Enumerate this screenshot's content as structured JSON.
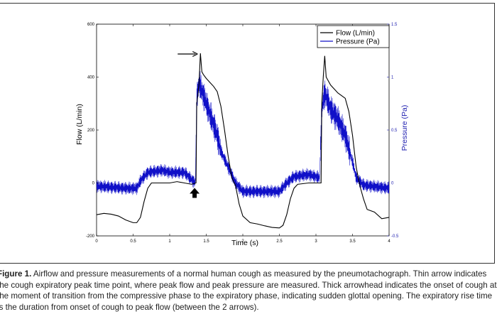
{
  "figure": {
    "caption_label": "Figure 1.",
    "caption_text": "Airflow and pressure measurements of a normal human cough as measured by the pneumotachograph. Thin arrow indicates the cough expiratory peak time point, where peak flow and peak pressure are measured. Thick arrowhead indicates the onset of cough at the moment of transition from the compressive phase to the expiratory phase, indicating sudden glottal opening. The expiratory rise time is the duration from onset of cough to peak flow (between the 2 arrows)."
  },
  "colors": {
    "flow": "#000000",
    "pressure": "#1010c8",
    "right_axis": "#2020b0"
  },
  "chart_data": {
    "type": "line",
    "title": "",
    "xlabel": "Time (s)",
    "ylabel": "Flow (L/min)",
    "y2label": "Pressure (Pa)",
    "xlim": [
      0,
      4
    ],
    "ylim": [
      -200,
      600
    ],
    "y2lim": [
      -0.5,
      1.5
    ],
    "x_ticks": [
      "0",
      "0.5",
      "1",
      "1.5",
      "2",
      "2.5",
      "3",
      "3.5",
      "4"
    ],
    "y_ticks": [
      "-200",
      "0",
      "200",
      "400",
      "600"
    ],
    "y2_ticks": [
      "-0.5",
      "0",
      "0.5",
      "1",
      "1.5"
    ],
    "legend_position": "top-right",
    "series": [
      {
        "name": "Flow (L/min)",
        "axis": "left",
        "points": [
          [
            0,
            -120
          ],
          [
            0.1,
            -115
          ],
          [
            0.2,
            -118
          ],
          [
            0.3,
            -125
          ],
          [
            0.4,
            -140
          ],
          [
            0.5,
            -150
          ],
          [
            0.55,
            -150
          ],
          [
            0.6,
            -130
          ],
          [
            0.65,
            -70
          ],
          [
            0.7,
            -20
          ],
          [
            0.75,
            0
          ],
          [
            0.9,
            0
          ],
          [
            1.0,
            0
          ],
          [
            1.1,
            5
          ],
          [
            1.2,
            0
          ],
          [
            1.3,
            -5
          ],
          [
            1.36,
            0
          ],
          [
            1.37,
            300
          ],
          [
            1.38,
            320
          ],
          [
            1.4,
            370
          ],
          [
            1.42,
            490
          ],
          [
            1.44,
            420
          ],
          [
            1.46,
            410
          ],
          [
            1.5,
            395
          ],
          [
            1.55,
            380
          ],
          [
            1.6,
            365
          ],
          [
            1.65,
            345
          ],
          [
            1.7,
            290
          ],
          [
            1.75,
            200
          ],
          [
            1.8,
            100
          ],
          [
            1.85,
            20
          ],
          [
            1.9,
            -10
          ],
          [
            1.95,
            -80
          ],
          [
            2.0,
            -125
          ],
          [
            2.1,
            -150
          ],
          [
            2.2,
            -155
          ],
          [
            2.3,
            -162
          ],
          [
            2.4,
            -168
          ],
          [
            2.5,
            -170
          ],
          [
            2.55,
            -160
          ],
          [
            2.6,
            -120
          ],
          [
            2.65,
            -60
          ],
          [
            2.7,
            -20
          ],
          [
            2.75,
            -5
          ],
          [
            2.9,
            0
          ],
          [
            3.0,
            0
          ],
          [
            3.05,
            0
          ],
          [
            3.07,
            0
          ],
          [
            3.08,
            300
          ],
          [
            3.1,
            400
          ],
          [
            3.12,
            480
          ],
          [
            3.14,
            400
          ],
          [
            3.2,
            370
          ],
          [
            3.3,
            340
          ],
          [
            3.4,
            320
          ],
          [
            3.45,
            270
          ],
          [
            3.5,
            180
          ],
          [
            3.55,
            60
          ],
          [
            3.6,
            -10
          ],
          [
            3.65,
            -60
          ],
          [
            3.7,
            -100
          ],
          [
            3.8,
            -110
          ],
          [
            3.9,
            -135
          ],
          [
            4.0,
            -130
          ]
        ]
      },
      {
        "name": "Pressure (Pa)",
        "axis": "right",
        "points": [
          [
            0,
            -0.03
          ],
          [
            0.4,
            -0.05
          ],
          [
            0.55,
            -0.05
          ],
          [
            0.6,
            0.02
          ],
          [
            0.7,
            0.1
          ],
          [
            0.9,
            0.12
          ],
          [
            1.0,
            0.1
          ],
          [
            1.2,
            0.1
          ],
          [
            1.35,
            0.0
          ],
          [
            1.37,
            0.8
          ],
          [
            1.4,
            0.95
          ],
          [
            1.45,
            0.85
          ],
          [
            1.55,
            0.65
          ],
          [
            1.6,
            0.55
          ],
          [
            1.65,
            0.45
          ],
          [
            1.7,
            0.3
          ],
          [
            1.8,
            0.15
          ],
          [
            1.9,
            0.0
          ],
          [
            2.0,
            -0.08
          ],
          [
            2.5,
            -0.08
          ],
          [
            2.6,
            0.0
          ],
          [
            2.7,
            0.06
          ],
          [
            2.9,
            0.08
          ],
          [
            3.05,
            0.05
          ],
          [
            3.08,
            0.7
          ],
          [
            3.12,
            0.85
          ],
          [
            3.2,
            0.7
          ],
          [
            3.3,
            0.6
          ],
          [
            3.4,
            0.45
          ],
          [
            3.5,
            0.2
          ],
          [
            3.55,
            0.05
          ],
          [
            3.65,
            -0.02
          ],
          [
            4.0,
            -0.05
          ]
        ],
        "oscillation_amplitude": 0.05
      }
    ],
    "annotations": [
      {
        "type": "thin-arrow",
        "label": "cough expiratory peak",
        "x": 1.42,
        "y": 490
      },
      {
        "type": "thick-arrowhead",
        "label": "onset of cough",
        "x": 1.36,
        "y": 0
      }
    ]
  }
}
